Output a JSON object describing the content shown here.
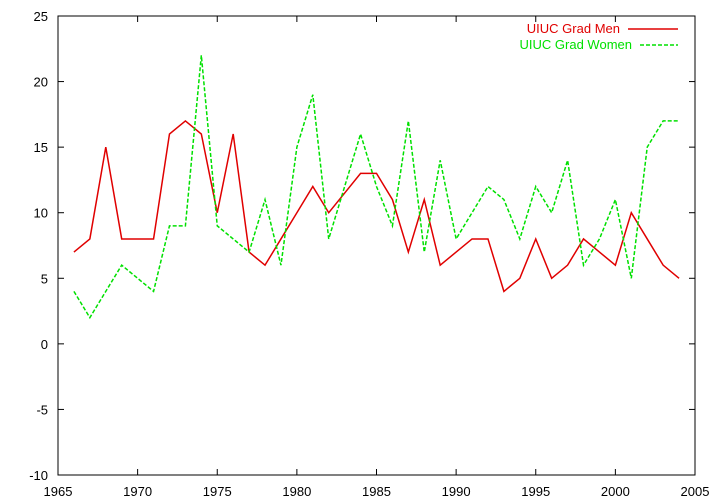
{
  "chart_data": {
    "type": "line",
    "title": "",
    "xlabel": "",
    "ylabel": "",
    "xlim": [
      1965,
      2005
    ],
    "ylim": [
      -10,
      25
    ],
    "xticks": [
      1965,
      1970,
      1975,
      1980,
      1985,
      1990,
      1995,
      2000,
      2005
    ],
    "yticks": [
      -10,
      -5,
      0,
      5,
      10,
      15,
      20,
      25
    ],
    "grid": false,
    "legend_position": "top-right",
    "series": [
      {
        "name": "UIUC Grad Men",
        "color": "#e00000",
        "dash": "solid",
        "x": [
          1966,
          1967,
          1968,
          1969,
          1970,
          1971,
          1972,
          1973,
          1974,
          1975,
          1976,
          1977,
          1978,
          1979,
          1980,
          1981,
          1982,
          1983,
          1984,
          1985,
          1986,
          1987,
          1988,
          1989,
          1990,
          1991,
          1992,
          1993,
          1994,
          1995,
          1996,
          1997,
          1998,
          1999,
          2000,
          2001,
          2002,
          2003,
          2004
        ],
        "y": [
          7,
          8,
          15,
          8,
          8,
          8,
          16,
          17,
          16,
          10,
          16,
          7,
          6,
          8,
          10,
          12,
          10,
          11.5,
          13,
          13,
          11,
          7,
          11,
          6,
          7,
          8,
          8,
          4,
          5,
          8,
          5,
          6,
          8,
          7,
          6,
          10,
          8,
          6,
          5
        ]
      },
      {
        "name": "UIUC Grad Women",
        "color": "#00e000",
        "dash": "dashed",
        "x": [
          1966,
          1967,
          1968,
          1969,
          1970,
          1971,
          1972,
          1973,
          1974,
          1975,
          1976,
          1977,
          1978,
          1979,
          1980,
          1981,
          1982,
          1983,
          1984,
          1985,
          1986,
          1987,
          1988,
          1989,
          1990,
          1991,
          1992,
          1993,
          1994,
          1995,
          1996,
          1997,
          1998,
          1999,
          2000,
          2001,
          2002,
          2003,
          2004
        ],
        "y": [
          4,
          2,
          4,
          6,
          5,
          4,
          9,
          9,
          22,
          9,
          8,
          7,
          11,
          6,
          15,
          19,
          8,
          12,
          16,
          12,
          9,
          17,
          7,
          14,
          8,
          10,
          12,
          11,
          8,
          12,
          10,
          14,
          6,
          8,
          11,
          5,
          15,
          17,
          17
        ]
      }
    ]
  }
}
